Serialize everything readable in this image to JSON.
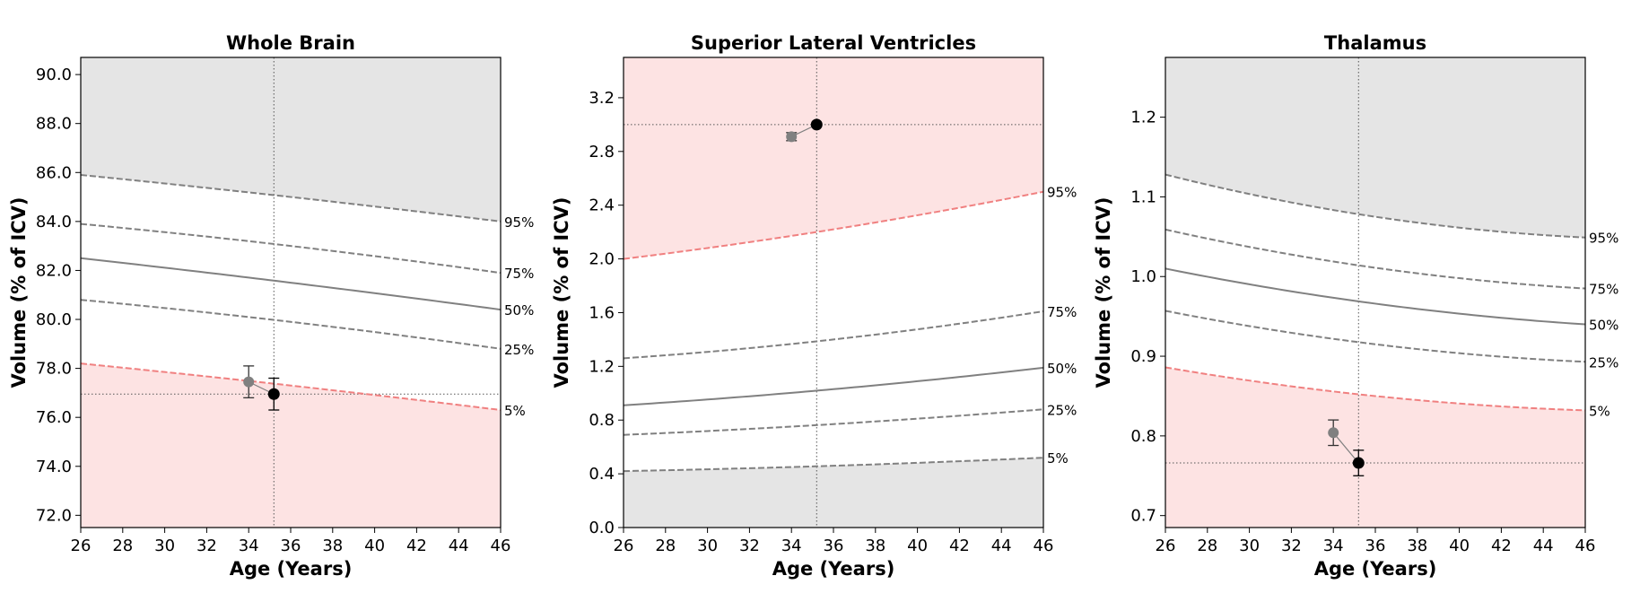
{
  "chart_data": [
    {
      "type": "line",
      "title": "Whole Brain",
      "xlabel": "Age (Years)",
      "ylabel": "Volume (% of ICV)",
      "xlim": [
        26,
        46
      ],
      "ylim": [
        71.5,
        90.7
      ],
      "x_ticks": [
        26,
        28,
        30,
        32,
        34,
        36,
        38,
        40,
        42,
        44,
        46
      ],
      "y_ticks": [
        "72.0",
        "74.0",
        "76.0",
        "78.0",
        "80.0",
        "82.0",
        "84.0",
        "86.0",
        "88.0",
        "90.0"
      ],
      "grid": false,
      "percentile_curves": [
        {
          "name": "95%",
          "style": "dashed",
          "color": "#808080",
          "x": [
            26,
            36,
            46
          ],
          "y": [
            85.9,
            85.0,
            84.0
          ]
        },
        {
          "name": "75%",
          "style": "dashed",
          "color": "#808080",
          "x": [
            26,
            36,
            46
          ],
          "y": [
            83.9,
            83.0,
            81.9
          ]
        },
        {
          "name": "50%",
          "style": "solid",
          "color": "#808080",
          "x": [
            26,
            36,
            46
          ],
          "y": [
            82.5,
            81.5,
            80.4
          ]
        },
        {
          "name": "25%",
          "style": "dashed",
          "color": "#808080",
          "x": [
            26,
            36,
            46
          ],
          "y": [
            80.8,
            79.9,
            78.8
          ]
        },
        {
          "name": "5%",
          "style": "dashed",
          "color": "#f08080",
          "x": [
            26,
            36,
            46
          ],
          "y": [
            78.2,
            77.3,
            76.3
          ]
        }
      ],
      "upper_shade_color": "#e5e5e5",
      "lower_shade_color": "#fde3e3",
      "shade_upper_from": "95%",
      "shade_lower_from": "5%",
      "points": [
        {
          "x": 34.0,
          "y": 77.45,
          "err": 0.65,
          "color": "#808080"
        },
        {
          "x": 35.2,
          "y": 76.95,
          "err": 0.65,
          "color": "#000000"
        }
      ],
      "ref_line_y": 76.95,
      "ref_line_x": 35.2
    },
    {
      "type": "line",
      "title": "Superior Lateral Ventricles",
      "xlabel": "Age (Years)",
      "ylabel": "Volume (% of ICV)",
      "xlim": [
        26,
        46
      ],
      "ylim": [
        0.0,
        3.5
      ],
      "x_ticks": [
        26,
        28,
        30,
        32,
        34,
        36,
        38,
        40,
        42,
        44,
        46
      ],
      "y_ticks": [
        "0.0",
        "0.4",
        "0.8",
        "1.2",
        "1.6",
        "2.0",
        "2.4",
        "2.8",
        "3.2"
      ],
      "grid": false,
      "percentile_curves": [
        {
          "name": "95%",
          "style": "dashed",
          "color": "#f08080",
          "x": [
            26,
            36,
            46
          ],
          "y": [
            2.0,
            2.22,
            2.5
          ]
        },
        {
          "name": "75%",
          "style": "dashed",
          "color": "#808080",
          "x": [
            26,
            36,
            46
          ],
          "y": [
            1.26,
            1.4,
            1.61
          ]
        },
        {
          "name": "50%",
          "style": "solid",
          "color": "#808080",
          "x": [
            26,
            36,
            46
          ],
          "y": [
            0.91,
            1.03,
            1.19
          ]
        },
        {
          "name": "25%",
          "style": "dashed",
          "color": "#808080",
          "x": [
            26,
            36,
            46
          ],
          "y": [
            0.69,
            0.77,
            0.88
          ]
        },
        {
          "name": "5%",
          "style": "dashed",
          "color": "#808080",
          "x": [
            26,
            36,
            46
          ],
          "y": [
            0.42,
            0.46,
            0.52
          ]
        }
      ],
      "upper_shade_color": "#fde3e3",
      "lower_shade_color": "#e5e5e5",
      "shade_upper_from": "95%",
      "shade_lower_from": "5%",
      "points": [
        {
          "x": 34.0,
          "y": 2.91,
          "err": 0.03,
          "color": "#808080"
        },
        {
          "x": 35.2,
          "y": 3.0,
          "err": 0.0,
          "color": "#000000"
        }
      ],
      "ref_line_y": 3.0,
      "ref_line_x": 35.2
    },
    {
      "type": "line",
      "title": "Thalamus",
      "xlabel": "Age (Years)",
      "ylabel": "Volume (% of ICV)",
      "xlim": [
        26,
        46
      ],
      "ylim": [
        0.685,
        1.275
      ],
      "x_ticks": [
        26,
        28,
        30,
        32,
        34,
        36,
        38,
        40,
        42,
        44,
        46
      ],
      "y_ticks": [
        "0.7",
        "0.8",
        "0.9",
        "1.0",
        "1.1",
        "1.2"
      ],
      "grid": false,
      "percentile_curves": [
        {
          "name": "95%",
          "style": "dashed",
          "color": "#808080",
          "x": [
            26,
            36,
            46
          ],
          "y": [
            1.128,
            1.075,
            1.049
          ]
        },
        {
          "name": "75%",
          "style": "dashed",
          "color": "#808080",
          "x": [
            26,
            36,
            46
          ],
          "y": [
            1.059,
            1.011,
            0.985
          ]
        },
        {
          "name": "50%",
          "style": "solid",
          "color": "#808080",
          "x": [
            26,
            36,
            46
          ],
          "y": [
            1.01,
            0.966,
            0.94
          ]
        },
        {
          "name": "25%",
          "style": "dashed",
          "color": "#808080",
          "x": [
            26,
            36,
            46
          ],
          "y": [
            0.957,
            0.915,
            0.893
          ]
        },
        {
          "name": "5%",
          "style": "dashed",
          "color": "#f08080",
          "x": [
            26,
            36,
            46
          ],
          "y": [
            0.886,
            0.85,
            0.832
          ]
        }
      ],
      "upper_shade_color": "#e5e5e5",
      "lower_shade_color": "#fde3e3",
      "shade_upper_from": "95%",
      "shade_lower_from": "5%",
      "points": [
        {
          "x": 34.0,
          "y": 0.804,
          "err": 0.016,
          "color": "#808080"
        },
        {
          "x": 35.2,
          "y": 0.766,
          "err": 0.016,
          "color": "#000000"
        }
      ],
      "ref_line_y": 0.766,
      "ref_line_x": 35.2
    }
  ]
}
